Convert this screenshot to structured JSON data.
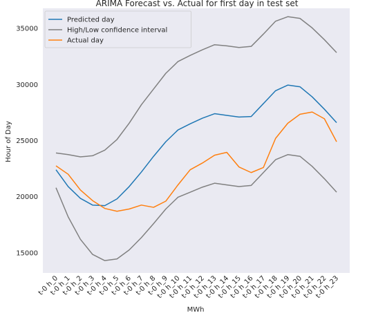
{
  "chart_data": {
    "type": "line",
    "title": "ARIMA Forecast vs. Actual for first day in test set",
    "xlabel": "MWh",
    "ylabel": "Hour of Day",
    "categories": [
      "t-0 h_0",
      "t-0 h_1",
      "t-0 h_2",
      "t-0 h_3",
      "t-0 h_4",
      "t-0 h_5",
      "t-0 h_6",
      "t-0 h_7",
      "t-0 h_8",
      "t-0 h_9",
      "t-0 h_10",
      "t-0 h_11",
      "t-0 h_12",
      "t-0 h_13",
      "t-0 h_14",
      "t-0 h_15",
      "t-0 h_16",
      "t-0 h_17",
      "t-0 h_18",
      "t-0 h_19",
      "t-0 h_20",
      "t-0 h_21",
      "t-0 h_22",
      "t-0 h_23"
    ],
    "ylim": [
      13200,
      36800
    ],
    "yticks": [
      15000,
      20000,
      25000,
      30000,
      35000
    ],
    "ytick_labels": [
      "15000",
      "20000",
      "25000",
      "30000",
      "35000"
    ],
    "grid": false,
    "legend_position": "upper-left",
    "background": "#eaeaf2",
    "series": [
      {
        "name": "Predicted day",
        "color": "#1f77b4",
        "values": [
          22400,
          20900,
          19850,
          19250,
          19200,
          19800,
          20900,
          22200,
          23600,
          24900,
          25950,
          26500,
          27000,
          27400,
          27250,
          27100,
          27150,
          28300,
          29450,
          29950,
          29800,
          28900,
          27800,
          26600
        ]
      },
      {
        "name": "High/Low confidence interval",
        "color": "#808080",
        "values": [
          23900,
          23750,
          23550,
          23650,
          24150,
          25100,
          26550,
          28200,
          29600,
          31000,
          32050,
          32600,
          33100,
          33550,
          33450,
          33300,
          33400,
          34500,
          35650,
          36050,
          35900,
          35050,
          34000,
          32850
        ]
      },
      {
        "name": "",
        "color": "#808080",
        "values": [
          20800,
          18200,
          16200,
          14850,
          14300,
          14450,
          15250,
          16350,
          17600,
          18900,
          19950,
          20400,
          20850,
          21200,
          21050,
          20900,
          21000,
          22150,
          23300,
          23750,
          23600,
          22700,
          21600,
          20400
        ]
      },
      {
        "name": "Actual day",
        "color": "#ff7f0e",
        "values": [
          22750,
          22000,
          20600,
          19650,
          18950,
          18700,
          18900,
          19250,
          19050,
          19600,
          21050,
          22400,
          23000,
          23700,
          23950,
          22650,
          22150,
          22600,
          25200,
          26550,
          27350,
          27550,
          26950,
          24900
        ]
      }
    ]
  }
}
